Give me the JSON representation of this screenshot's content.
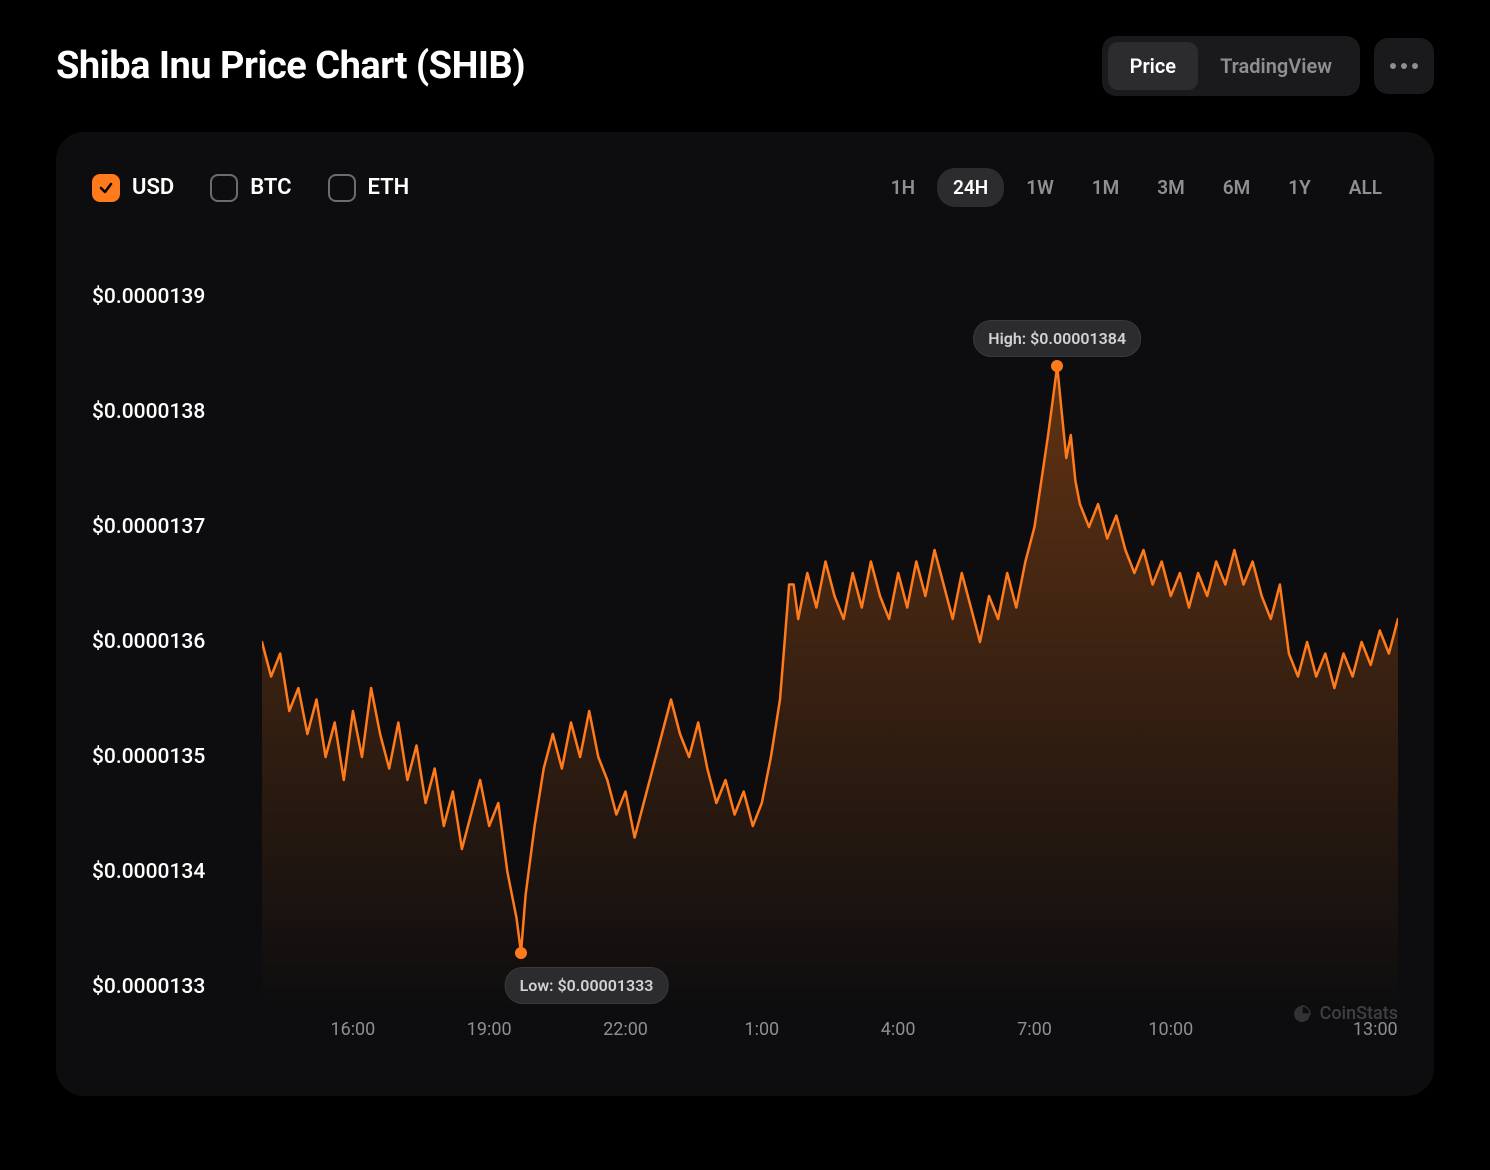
{
  "header": {
    "title": "Shiba Inu Price Chart (SHIB)",
    "tabs": [
      {
        "label": "Price",
        "active": true
      },
      {
        "label": "TradingView",
        "active": false
      }
    ]
  },
  "currencies": [
    {
      "code": "USD",
      "checked": true
    },
    {
      "code": "BTC",
      "checked": false
    },
    {
      "code": "ETH",
      "checked": false
    }
  ],
  "ranges": [
    {
      "label": "1H",
      "active": false
    },
    {
      "label": "24H",
      "active": true
    },
    {
      "label": "1W",
      "active": false
    },
    {
      "label": "1M",
      "active": false
    },
    {
      "label": "3M",
      "active": false
    },
    {
      "label": "6M",
      "active": false
    },
    {
      "label": "1Y",
      "active": false
    },
    {
      "label": "ALL",
      "active": false
    }
  ],
  "chart": {
    "type": "area-line",
    "line_color": "#ff7a1a",
    "line_width": 2.5,
    "fill_gradient_top": "rgba(255,122,26,0.35)",
    "fill_gradient_bottom": "rgba(255,122,26,0.0)",
    "background_color": "#0d0d0f",
    "y_axis": {
      "min": 1.33e-05,
      "max": 1.39e-05,
      "ticks": [
        1.33e-05,
        1.34e-05,
        1.35e-05,
        1.36e-05,
        1.37e-05,
        1.38e-05,
        1.39e-05
      ],
      "tick_labels": [
        "$0.0000133",
        "$0.0000134",
        "$0.0000135",
        "$0.0000136",
        "$0.0000137",
        "$0.0000138",
        "$0.0000139"
      ],
      "label_color": "#ffffff",
      "label_fontsize": 21
    },
    "x_axis": {
      "ticks": [
        0.08,
        0.2,
        0.32,
        0.44,
        0.56,
        0.68,
        0.8,
        0.98
      ],
      "tick_labels": [
        "16:00",
        "19:00",
        "22:00",
        "1:00",
        "4:00",
        "7:00",
        "10:00",
        "13:00"
      ],
      "label_color": "#8e8e93",
      "label_fontsize": 18
    },
    "annotations": {
      "low": {
        "label": "Low: $0.00001333",
        "x": 0.228,
        "y_value": 1.333e-05
      },
      "high": {
        "label": "High: $0.00001384",
        "x": 0.7,
        "y_value": 1.384e-05
      }
    },
    "marker_color": "#ff7a1a",
    "marker_radius": 6,
    "series": [
      {
        "x": 0.0,
        "y": 1.36e-05
      },
      {
        "x": 0.008,
        "y": 1.357e-05
      },
      {
        "x": 0.016,
        "y": 1.359e-05
      },
      {
        "x": 0.024,
        "y": 1.354e-05
      },
      {
        "x": 0.032,
        "y": 1.356e-05
      },
      {
        "x": 0.04,
        "y": 1.352e-05
      },
      {
        "x": 0.048,
        "y": 1.355e-05
      },
      {
        "x": 0.056,
        "y": 1.35e-05
      },
      {
        "x": 0.064,
        "y": 1.353e-05
      },
      {
        "x": 0.072,
        "y": 1.348e-05
      },
      {
        "x": 0.08,
        "y": 1.354e-05
      },
      {
        "x": 0.088,
        "y": 1.35e-05
      },
      {
        "x": 0.096,
        "y": 1.356e-05
      },
      {
        "x": 0.104,
        "y": 1.352e-05
      },
      {
        "x": 0.112,
        "y": 1.349e-05
      },
      {
        "x": 0.12,
        "y": 1.353e-05
      },
      {
        "x": 0.128,
        "y": 1.348e-05
      },
      {
        "x": 0.136,
        "y": 1.351e-05
      },
      {
        "x": 0.144,
        "y": 1.346e-05
      },
      {
        "x": 0.152,
        "y": 1.349e-05
      },
      {
        "x": 0.16,
        "y": 1.344e-05
      },
      {
        "x": 0.168,
        "y": 1.347e-05
      },
      {
        "x": 0.176,
        "y": 1.342e-05
      },
      {
        "x": 0.184,
        "y": 1.345e-05
      },
      {
        "x": 0.192,
        "y": 1.348e-05
      },
      {
        "x": 0.2,
        "y": 1.344e-05
      },
      {
        "x": 0.208,
        "y": 1.346e-05
      },
      {
        "x": 0.216,
        "y": 1.34e-05
      },
      {
        "x": 0.224,
        "y": 1.336e-05
      },
      {
        "x": 0.228,
        "y": 1.333e-05
      },
      {
        "x": 0.232,
        "y": 1.338e-05
      },
      {
        "x": 0.24,
        "y": 1.344e-05
      },
      {
        "x": 0.248,
        "y": 1.349e-05
      },
      {
        "x": 0.256,
        "y": 1.352e-05
      },
      {
        "x": 0.264,
        "y": 1.349e-05
      },
      {
        "x": 0.272,
        "y": 1.353e-05
      },
      {
        "x": 0.28,
        "y": 1.35e-05
      },
      {
        "x": 0.288,
        "y": 1.354e-05
      },
      {
        "x": 0.296,
        "y": 1.35e-05
      },
      {
        "x": 0.304,
        "y": 1.348e-05
      },
      {
        "x": 0.312,
        "y": 1.345e-05
      },
      {
        "x": 0.32,
        "y": 1.347e-05
      },
      {
        "x": 0.328,
        "y": 1.343e-05
      },
      {
        "x": 0.336,
        "y": 1.346e-05
      },
      {
        "x": 0.344,
        "y": 1.349e-05
      },
      {
        "x": 0.352,
        "y": 1.352e-05
      },
      {
        "x": 0.36,
        "y": 1.355e-05
      },
      {
        "x": 0.368,
        "y": 1.352e-05
      },
      {
        "x": 0.376,
        "y": 1.35e-05
      },
      {
        "x": 0.384,
        "y": 1.353e-05
      },
      {
        "x": 0.392,
        "y": 1.349e-05
      },
      {
        "x": 0.4,
        "y": 1.346e-05
      },
      {
        "x": 0.408,
        "y": 1.348e-05
      },
      {
        "x": 0.416,
        "y": 1.345e-05
      },
      {
        "x": 0.424,
        "y": 1.347e-05
      },
      {
        "x": 0.432,
        "y": 1.344e-05
      },
      {
        "x": 0.44,
        "y": 1.346e-05
      },
      {
        "x": 0.448,
        "y": 1.35e-05
      },
      {
        "x": 0.456,
        "y": 1.355e-05
      },
      {
        "x": 0.46,
        "y": 1.36e-05
      },
      {
        "x": 0.464,
        "y": 1.365e-05
      },
      {
        "x": 0.468,
        "y": 1.365e-05
      },
      {
        "x": 0.472,
        "y": 1.362e-05
      },
      {
        "x": 0.48,
        "y": 1.366e-05
      },
      {
        "x": 0.488,
        "y": 1.363e-05
      },
      {
        "x": 0.496,
        "y": 1.367e-05
      },
      {
        "x": 0.504,
        "y": 1.364e-05
      },
      {
        "x": 0.512,
        "y": 1.362e-05
      },
      {
        "x": 0.52,
        "y": 1.366e-05
      },
      {
        "x": 0.528,
        "y": 1.363e-05
      },
      {
        "x": 0.536,
        "y": 1.367e-05
      },
      {
        "x": 0.544,
        "y": 1.364e-05
      },
      {
        "x": 0.552,
        "y": 1.362e-05
      },
      {
        "x": 0.56,
        "y": 1.366e-05
      },
      {
        "x": 0.568,
        "y": 1.363e-05
      },
      {
        "x": 0.576,
        "y": 1.367e-05
      },
      {
        "x": 0.584,
        "y": 1.364e-05
      },
      {
        "x": 0.592,
        "y": 1.368e-05
      },
      {
        "x": 0.6,
        "y": 1.365e-05
      },
      {
        "x": 0.608,
        "y": 1.362e-05
      },
      {
        "x": 0.616,
        "y": 1.366e-05
      },
      {
        "x": 0.624,
        "y": 1.363e-05
      },
      {
        "x": 0.632,
        "y": 1.36e-05
      },
      {
        "x": 0.64,
        "y": 1.364e-05
      },
      {
        "x": 0.648,
        "y": 1.362e-05
      },
      {
        "x": 0.656,
        "y": 1.366e-05
      },
      {
        "x": 0.664,
        "y": 1.363e-05
      },
      {
        "x": 0.672,
        "y": 1.367e-05
      },
      {
        "x": 0.68,
        "y": 1.37e-05
      },
      {
        "x": 0.686,
        "y": 1.374e-05
      },
      {
        "x": 0.692,
        "y": 1.378e-05
      },
      {
        "x": 0.696,
        "y": 1.381e-05
      },
      {
        "x": 0.7,
        "y": 1.384e-05
      },
      {
        "x": 0.704,
        "y": 1.38e-05
      },
      {
        "x": 0.708,
        "y": 1.376e-05
      },
      {
        "x": 0.712,
        "y": 1.378e-05
      },
      {
        "x": 0.716,
        "y": 1.374e-05
      },
      {
        "x": 0.72,
        "y": 1.372e-05
      },
      {
        "x": 0.728,
        "y": 1.37e-05
      },
      {
        "x": 0.736,
        "y": 1.372e-05
      },
      {
        "x": 0.744,
        "y": 1.369e-05
      },
      {
        "x": 0.752,
        "y": 1.371e-05
      },
      {
        "x": 0.76,
        "y": 1.368e-05
      },
      {
        "x": 0.768,
        "y": 1.366e-05
      },
      {
        "x": 0.776,
        "y": 1.368e-05
      },
      {
        "x": 0.784,
        "y": 1.365e-05
      },
      {
        "x": 0.792,
        "y": 1.367e-05
      },
      {
        "x": 0.8,
        "y": 1.364e-05
      },
      {
        "x": 0.808,
        "y": 1.366e-05
      },
      {
        "x": 0.816,
        "y": 1.363e-05
      },
      {
        "x": 0.824,
        "y": 1.366e-05
      },
      {
        "x": 0.832,
        "y": 1.364e-05
      },
      {
        "x": 0.84,
        "y": 1.367e-05
      },
      {
        "x": 0.848,
        "y": 1.365e-05
      },
      {
        "x": 0.856,
        "y": 1.368e-05
      },
      {
        "x": 0.864,
        "y": 1.365e-05
      },
      {
        "x": 0.872,
        "y": 1.367e-05
      },
      {
        "x": 0.88,
        "y": 1.364e-05
      },
      {
        "x": 0.888,
        "y": 1.362e-05
      },
      {
        "x": 0.896,
        "y": 1.365e-05
      },
      {
        "x": 0.904,
        "y": 1.359e-05
      },
      {
        "x": 0.912,
        "y": 1.357e-05
      },
      {
        "x": 0.92,
        "y": 1.36e-05
      },
      {
        "x": 0.928,
        "y": 1.357e-05
      },
      {
        "x": 0.936,
        "y": 1.359e-05
      },
      {
        "x": 0.944,
        "y": 1.356e-05
      },
      {
        "x": 0.952,
        "y": 1.359e-05
      },
      {
        "x": 0.96,
        "y": 1.357e-05
      },
      {
        "x": 0.968,
        "y": 1.36e-05
      },
      {
        "x": 0.976,
        "y": 1.358e-05
      },
      {
        "x": 0.984,
        "y": 1.361e-05
      },
      {
        "x": 0.992,
        "y": 1.359e-05
      },
      {
        "x": 1.0,
        "y": 1.362e-05
      }
    ]
  },
  "watermark": {
    "label": "CoinStats"
  }
}
